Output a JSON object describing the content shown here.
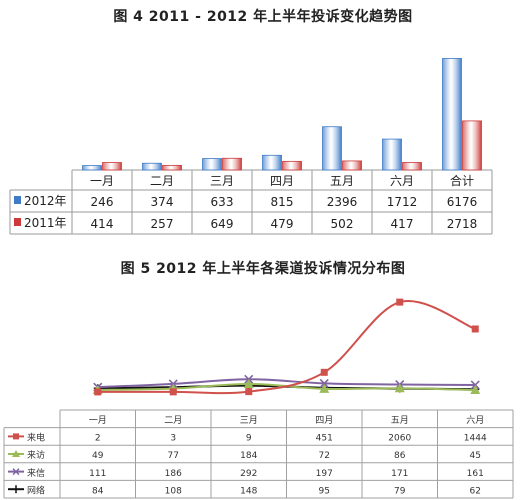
{
  "chart_data": [
    {
      "type": "bar",
      "title": "图 4    2011 - 2012 年上半年投诉变化趋势图",
      "categories": [
        "一月",
        "二月",
        "三月",
        "四月",
        "五月",
        "六月",
        "合计"
      ],
      "series": [
        {
          "name": "2012年",
          "color": "#3e7cc8",
          "values": [
            246,
            374,
            633,
            815,
            2396,
            1712,
            6176
          ]
        },
        {
          "name": "2011年",
          "color": "#cc3b39",
          "values": [
            414,
            257,
            649,
            479,
            502,
            417,
            2718
          ]
        }
      ],
      "ylim": [
        0,
        6200
      ],
      "legend": "table"
    },
    {
      "type": "line",
      "title": "图 5    2012 年上半年各渠道投诉情况分布图",
      "categories": [
        "一月",
        "二月",
        "三月",
        "四月",
        "五月",
        "六月"
      ],
      "series": [
        {
          "name": "来电",
          "color": "#d0504c",
          "marker": "square",
          "values": [
            2,
            3,
            9,
            451,
            2060,
            1444
          ]
        },
        {
          "name": "来访",
          "color": "#9bbb59",
          "marker": "triangle",
          "values": [
            49,
            77,
            184,
            72,
            86,
            45
          ]
        },
        {
          "name": "来信",
          "color": "#8064a2",
          "marker": "x",
          "values": [
            111,
            186,
            292,
            197,
            171,
            161
          ]
        },
        {
          "name": "网络",
          "color": "#111111",
          "marker": "star",
          "values": [
            84,
            108,
            148,
            95,
            79,
            62
          ]
        }
      ],
      "ylim": [
        0,
        2200
      ],
      "legend": "table"
    }
  ]
}
